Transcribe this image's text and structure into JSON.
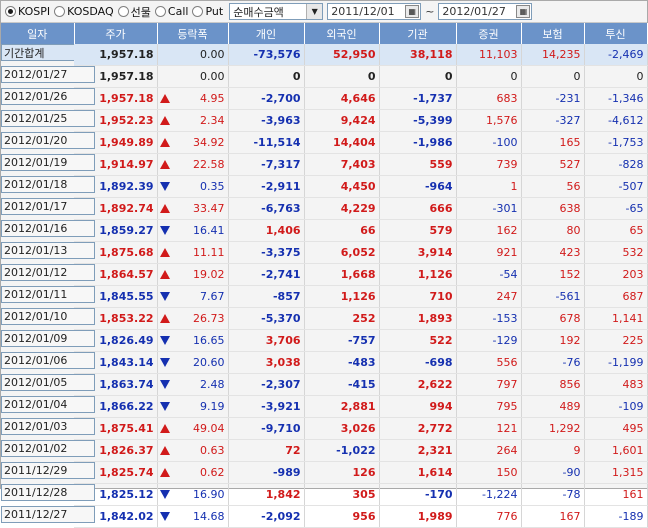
{
  "toolbar": {
    "markets": [
      {
        "label": "KOSPI",
        "selected": true
      },
      {
        "label": "KOSDAQ",
        "selected": false
      },
      {
        "label": "선물",
        "selected": false
      },
      {
        "label": "Call",
        "selected": false
      },
      {
        "label": "Put",
        "selected": false
      }
    ],
    "mode_select": "순매수금액",
    "date_from": "2011/12/01",
    "date_sep": "~",
    "date_to": "2012/01/27"
  },
  "table": {
    "headers": [
      "일자",
      "주가",
      "등락폭",
      "개인",
      "외국인",
      "기관",
      "증권",
      "보험",
      "투신"
    ],
    "summary": {
      "date": "기간합계",
      "price": "1,957.18",
      "chg": "0.00",
      "dir": "none",
      "indiv": "-73,576",
      "foreign": "52,950",
      "inst": "38,118",
      "sec": "11,103",
      "ins": "14,235",
      "trust": "-2,469"
    },
    "rows": [
      {
        "date": "2012/01/27",
        "price": "1,957.18",
        "chg": "0.00",
        "dir": "none",
        "indiv": "0",
        "foreign": "0",
        "inst": "0",
        "sec": "0",
        "ins": "0",
        "trust": "0"
      },
      {
        "date": "2012/01/26",
        "price": "1,957.18",
        "chg": "4.95",
        "dir": "up",
        "indiv": "-2,700",
        "foreign": "4,646",
        "inst": "-1,737",
        "sec": "683",
        "ins": "-231",
        "trust": "-1,346"
      },
      {
        "date": "2012/01/25",
        "price": "1,952.23",
        "chg": "2.34",
        "dir": "up",
        "indiv": "-3,963",
        "foreign": "9,424",
        "inst": "-5,399",
        "sec": "1,576",
        "ins": "-327",
        "trust": "-4,612"
      },
      {
        "date": "2012/01/20",
        "price": "1,949.89",
        "chg": "34.92",
        "dir": "up",
        "indiv": "-11,514",
        "foreign": "14,404",
        "inst": "-1,986",
        "sec": "-100",
        "ins": "165",
        "trust": "-1,753"
      },
      {
        "date": "2012/01/19",
        "price": "1,914.97",
        "chg": "22.58",
        "dir": "up",
        "indiv": "-7,317",
        "foreign": "7,403",
        "inst": "559",
        "sec": "739",
        "ins": "527",
        "trust": "-828"
      },
      {
        "date": "2012/01/18",
        "price": "1,892.39",
        "chg": "0.35",
        "dir": "down",
        "indiv": "-2,911",
        "foreign": "4,450",
        "inst": "-964",
        "sec": "1",
        "ins": "56",
        "trust": "-507"
      },
      {
        "date": "2012/01/17",
        "price": "1,892.74",
        "chg": "33.47",
        "dir": "up",
        "indiv": "-6,763",
        "foreign": "4,229",
        "inst": "666",
        "sec": "-301",
        "ins": "638",
        "trust": "-65"
      },
      {
        "date": "2012/01/16",
        "price": "1,859.27",
        "chg": "16.41",
        "dir": "down",
        "indiv": "1,406",
        "foreign": "66",
        "inst": "579",
        "sec": "162",
        "ins": "80",
        "trust": "65"
      },
      {
        "date": "2012/01/13",
        "price": "1,875.68",
        "chg": "11.11",
        "dir": "up",
        "indiv": "-3,375",
        "foreign": "6,052",
        "inst": "3,914",
        "sec": "921",
        "ins": "423",
        "trust": "532"
      },
      {
        "date": "2012/01/12",
        "price": "1,864.57",
        "chg": "19.02",
        "dir": "up",
        "indiv": "-2,741",
        "foreign": "1,668",
        "inst": "1,126",
        "sec": "-54",
        "ins": "152",
        "trust": "203"
      },
      {
        "date": "2012/01/11",
        "price": "1,845.55",
        "chg": "7.67",
        "dir": "down",
        "indiv": "-857",
        "foreign": "1,126",
        "inst": "710",
        "sec": "247",
        "ins": "-561",
        "trust": "687"
      },
      {
        "date": "2012/01/10",
        "price": "1,853.22",
        "chg": "26.73",
        "dir": "up",
        "indiv": "-5,370",
        "foreign": "252",
        "inst": "1,893",
        "sec": "-153",
        "ins": "678",
        "trust": "1,141"
      },
      {
        "date": "2012/01/09",
        "price": "1,826.49",
        "chg": "16.65",
        "dir": "down",
        "indiv": "3,706",
        "foreign": "-757",
        "inst": "522",
        "sec": "-129",
        "ins": "192",
        "trust": "225"
      },
      {
        "date": "2012/01/06",
        "price": "1,843.14",
        "chg": "20.60",
        "dir": "down",
        "indiv": "3,038",
        "foreign": "-483",
        "inst": "-698",
        "sec": "556",
        "ins": "-76",
        "trust": "-1,199"
      },
      {
        "date": "2012/01/05",
        "price": "1,863.74",
        "chg": "2.48",
        "dir": "down",
        "indiv": "-2,307",
        "foreign": "-415",
        "inst": "2,622",
        "sec": "797",
        "ins": "856",
        "trust": "483"
      },
      {
        "date": "2012/01/04",
        "price": "1,866.22",
        "chg": "9.19",
        "dir": "down",
        "indiv": "-3,921",
        "foreign": "2,881",
        "inst": "994",
        "sec": "795",
        "ins": "489",
        "trust": "-109"
      },
      {
        "date": "2012/01/03",
        "price": "1,875.41",
        "chg": "49.04",
        "dir": "up",
        "indiv": "-9,710",
        "foreign": "3,026",
        "inst": "2,772",
        "sec": "121",
        "ins": "1,292",
        "trust": "495"
      },
      {
        "date": "2012/01/02",
        "price": "1,826.37",
        "chg": "0.63",
        "dir": "up",
        "indiv": "72",
        "foreign": "-1,022",
        "inst": "2,321",
        "sec": "264",
        "ins": "9",
        "trust": "1,601"
      },
      {
        "date": "2011/12/29",
        "price": "1,825.74",
        "chg": "0.62",
        "dir": "up",
        "indiv": "-989",
        "foreign": "126",
        "inst": "1,614",
        "sec": "150",
        "ins": "-90",
        "trust": "1,315"
      },
      {
        "date": "2011/12/28",
        "price": "1,825.12",
        "chg": "16.90",
        "dir": "down",
        "indiv": "1,842",
        "foreign": "305",
        "inst": "-170",
        "sec": "-1,224",
        "ins": "-78",
        "trust": "161"
      },
      {
        "date": "2011/12/27",
        "price": "1,842.02",
        "chg": "14.68",
        "dir": "down",
        "indiv": "-2,092",
        "foreign": "956",
        "inst": "1,989",
        "sec": "776",
        "ins": "167",
        "trust": "-189"
      }
    ]
  },
  "colors": {
    "up": "#d11a1a",
    "down": "#1530b0",
    "header_bg": "#6b93c9",
    "summary_bg": "#d9e6f5"
  }
}
